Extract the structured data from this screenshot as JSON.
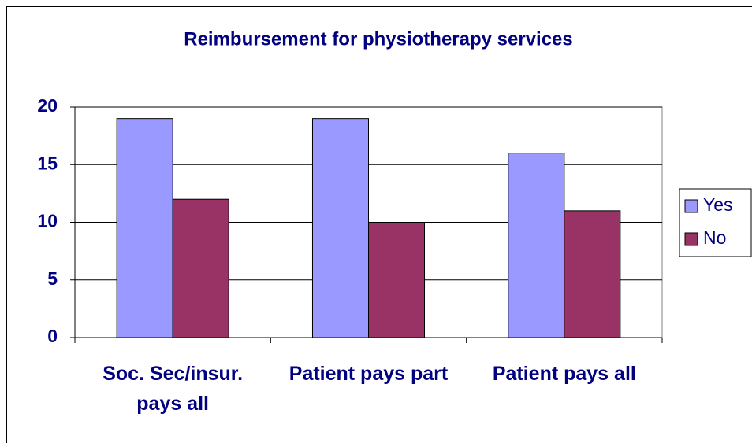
{
  "chart_data": {
    "type": "bar",
    "title": "Reimbursement for physiotherapy services",
    "categories": [
      "Soc. Sec/insur. pays all",
      "Patient pays part",
      "Patient pays all"
    ],
    "series": [
      {
        "name": "Yes",
        "color": "#9999ff",
        "values": [
          19,
          19,
          16
        ]
      },
      {
        "name": "No",
        "color": "#993366",
        "values": [
          12,
          10,
          11
        ]
      }
    ],
    "ylim": [
      0,
      20
    ],
    "yticks": [
      0,
      5,
      10,
      15,
      20
    ],
    "grid": true,
    "legend": "right"
  }
}
